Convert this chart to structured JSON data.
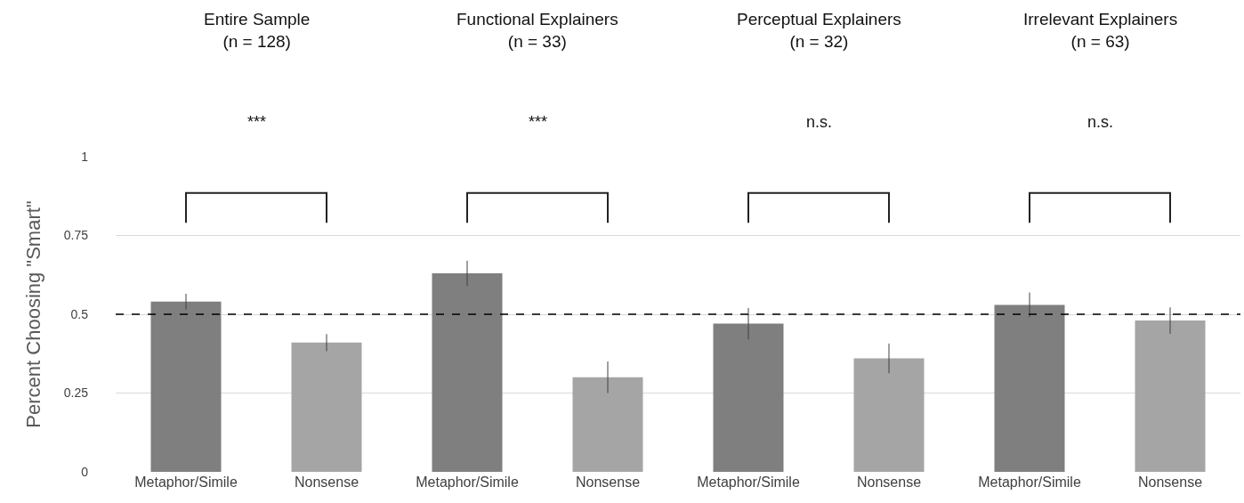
{
  "chart_data": {
    "type": "bar",
    "ylabel": "Percent Choosing \"Smart\"",
    "categories": [
      "Metaphor/Simile",
      "Nonsense",
      "Metaphor/Simile",
      "Nonsense",
      "Metaphor/Simile",
      "Nonsense",
      "Metaphor/Simile",
      "Nonsense"
    ],
    "values": [
      0.54,
      0.41,
      0.63,
      0.3,
      0.47,
      0.36,
      0.53,
      0.48
    ],
    "errors": [
      0.025,
      0.027,
      0.04,
      0.05,
      0.05,
      0.047,
      0.039,
      0.042
    ],
    "colors": [
      "#7f7f7f",
      "#a5a5a5",
      "#7f7f7f",
      "#a5a5a5",
      "#7f7f7f",
      "#a5a5a5",
      "#7f7f7f",
      "#a5a5a5"
    ],
    "ylim": [
      0,
      1
    ],
    "yticks": [
      0,
      0.25,
      0.5,
      0.75,
      1
    ],
    "grid": "y",
    "ref_lines": [
      {
        "axis": "y",
        "value": 0.5,
        "line_style": "dashed",
        "color": "#000000"
      }
    ],
    "annotations": [
      "Entire Sample\n(n = 128)",
      "Functional Explainers\n(n = 33)",
      "Perceptual Explainers\n(n = 32)",
      "Irrelevant Explainers\n(n = 63)",
      "***",
      "***",
      "n.s.",
      "n.s."
    ]
  }
}
